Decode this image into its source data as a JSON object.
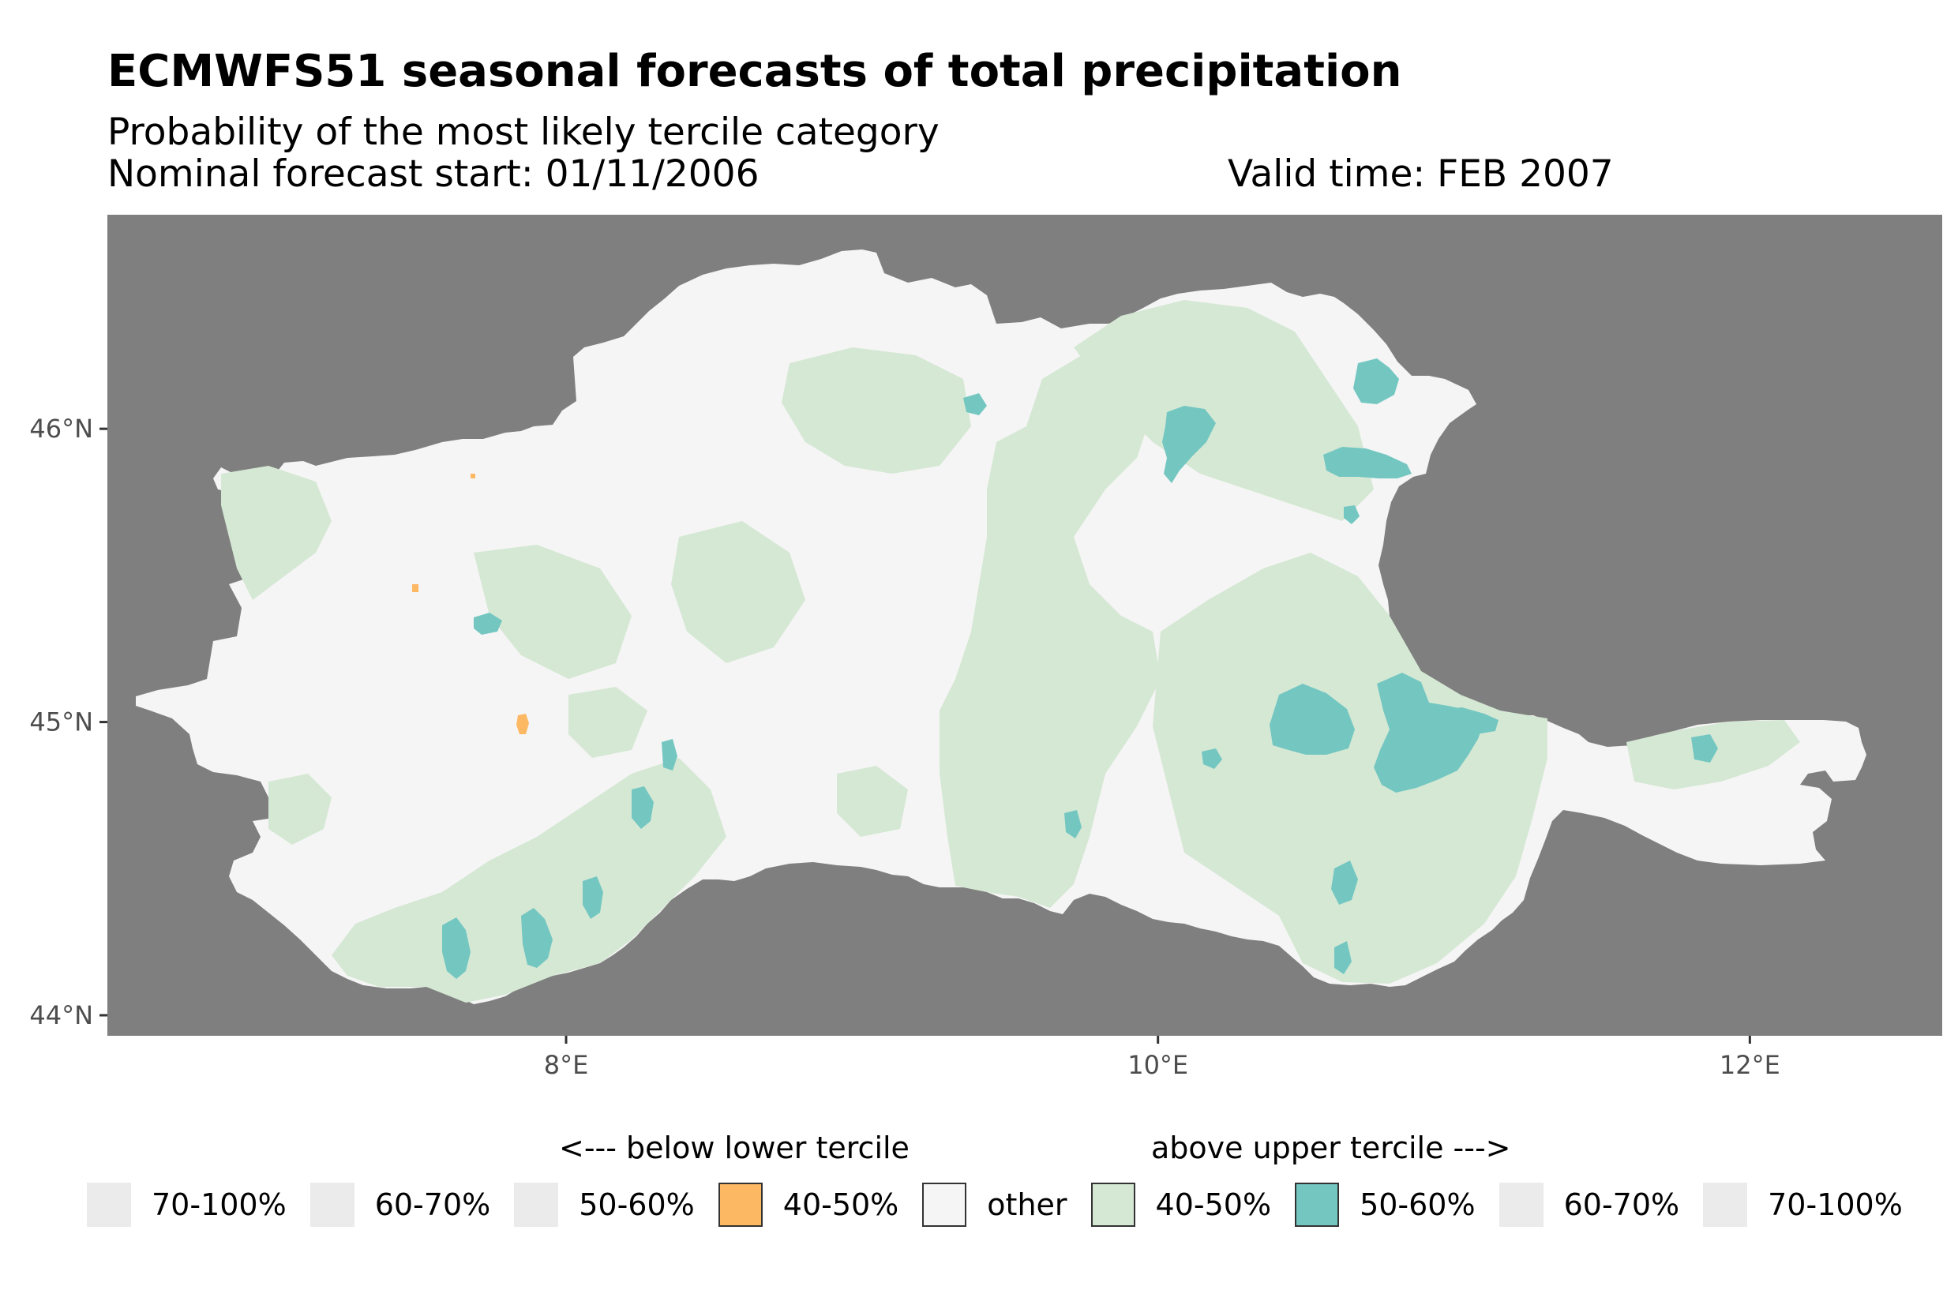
{
  "title": "ECMWFS51 seasonal forecasts of total precipitation",
  "subtitle": "Probability of the most likely tercile category",
  "forecast_start": "Nominal forecast start: 01/11/2006",
  "valid_time": "Valid time: FEB 2007",
  "map": {
    "background_color": "#7f7f7f",
    "region_color": "#f5f5f5",
    "lat_ticks": [
      {
        "value": 46,
        "label": "46°N"
      },
      {
        "value": 45,
        "label": "45°N"
      },
      {
        "value": 44,
        "label": "44°N"
      }
    ],
    "lon_ticks": [
      {
        "value": 8,
        "label": "8°E"
      },
      {
        "value": 10,
        "label": "10°E"
      },
      {
        "value": 12,
        "label": "12°E"
      }
    ],
    "lon_range": [
      6.45,
      12.65
    ],
    "lat_range": [
      43.93,
      46.73
    ]
  },
  "legend": {
    "below_header": "<--- below lower tercile",
    "above_header": "above upper tercile --->",
    "items": [
      {
        "label": "70-100%",
        "color": "#ebebeb",
        "bordered": false
      },
      {
        "label": "60-70%",
        "color": "#ebebeb",
        "bordered": false
      },
      {
        "label": "50-60%",
        "color": "#ebebeb",
        "bordered": false
      },
      {
        "label": "40-50%",
        "color": "#fdb863",
        "bordered": true
      },
      {
        "label": "other",
        "color": "#f5f5f5",
        "bordered": true
      },
      {
        "label": "40-50%",
        "color": "#d5e8d4",
        "bordered": true
      },
      {
        "label": "50-60%",
        "color": "#74c7c1",
        "bordered": true
      },
      {
        "label": "60-70%",
        "color": "#ebebeb",
        "bordered": false
      },
      {
        "label": "70-100%",
        "color": "#ebebeb",
        "bordered": false
      }
    ]
  }
}
